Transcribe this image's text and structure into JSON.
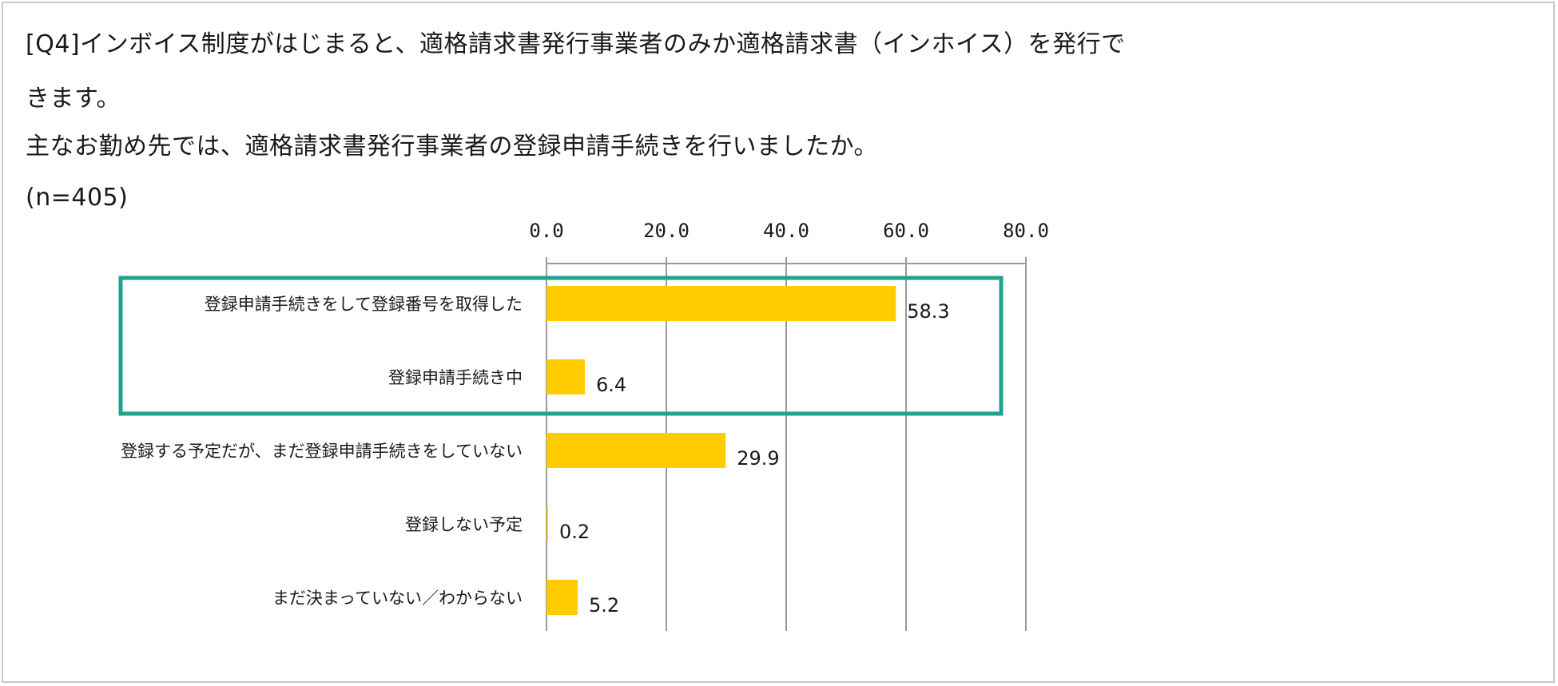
{
  "question": {
    "line1": "[Q4]インボイス制度がはじまると、適格請求書発行事業者のみか適格請求書（インホイス）を発行で",
    "line2": "きます。",
    "line3": "主なお勤め先では、適格請求書発行事業者の登録申請手続きを行いましたか。",
    "sample": "(n=405)"
  },
  "colors": {
    "bar": "#FFCC00",
    "highlight_box": "#1FA58E",
    "grid": "#9a9a9a",
    "frame": "#c8c8c8"
  },
  "chart_data": {
    "type": "bar",
    "orientation": "horizontal",
    "xlim": [
      0,
      80
    ],
    "ticks": [
      "0.0",
      "20.0",
      "40.0",
      "60.0",
      "80.0"
    ],
    "tick_values": [
      0,
      20,
      40,
      60,
      80
    ],
    "categories": [
      "登録申請手続きをして登録番号を取得した",
      "登録申請手続き中",
      "登録する予定だが、まだ登録申請手続きをしていない",
      "登録しない予定",
      "まだ決まっていない／わからない"
    ],
    "values": [
      58.3,
      6.4,
      29.9,
      0.2,
      5.2
    ],
    "value_labels": [
      "58.3",
      "6.4",
      "29.9",
      "0.2",
      "5.2"
    ],
    "highlighted_categories": [
      0,
      1
    ],
    "grid": true,
    "legend": "none"
  }
}
